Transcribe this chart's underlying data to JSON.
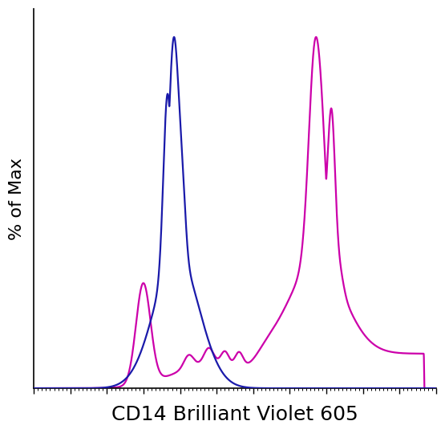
{
  "title": "",
  "xlabel": "CD14 Brilliant Violet 605",
  "ylabel": "% of Max",
  "xlabel_fontsize": 18,
  "ylabel_fontsize": 16,
  "background_color": "#ffffff",
  "blue_color": "#1a1aaa",
  "magenta_color": "#cc00aa",
  "line_width": 1.6,
  "xlim": [
    0.0,
    1.0
  ],
  "ylim": [
    0.0,
    1.08
  ]
}
